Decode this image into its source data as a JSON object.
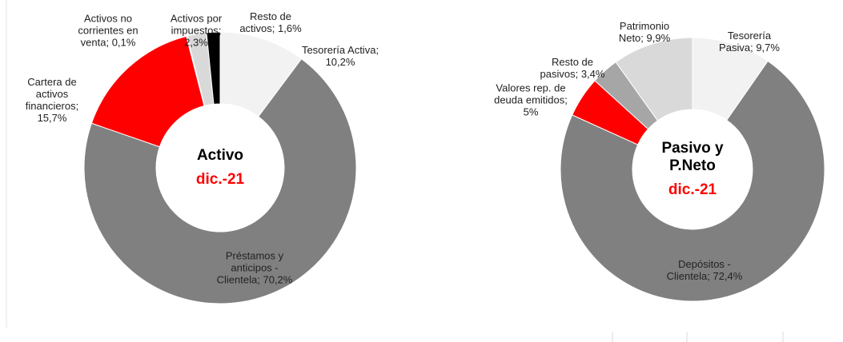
{
  "chart_data": [
    {
      "type": "donut",
      "center_title": "Activo",
      "center_subtitle": "dic.-21",
      "label_separator": "; ",
      "categories": [
        "Tesorería Activa",
        "Préstamos y anticipos - Clientela",
        "Cartera de activos financieros",
        "Activos no corrientes en venta",
        "Activos por impuestos",
        "Resto de activos"
      ],
      "values": [
        10.2,
        70.2,
        15.7,
        0.1,
        2.3,
        1.6
      ],
      "value_labels": [
        "10,2%",
        "70,2%",
        "15,7%",
        "0,1%",
        "2,3%",
        "1,6%"
      ],
      "colors": [
        "#f2f2f2",
        "#808080",
        "#ff0000",
        "#bfbfbf",
        "#d9d9d9",
        "#000000"
      ]
    },
    {
      "type": "donut",
      "center_title": "Pasivo y P.Neto",
      "center_subtitle": "dic.-21",
      "label_separator": "; ",
      "categories": [
        "Tesorería Pasiva",
        "Depósitos - Clientela",
        "Valores rep. de deuda emitidos",
        "Resto de pasivos",
        "Patrimonio Neto"
      ],
      "values": [
        9.7,
        72.4,
        5,
        3.4,
        9.9
      ],
      "value_labels": [
        "9,7%",
        "72,4%",
        "5%",
        "3,4%",
        "9,9%"
      ],
      "colors": [
        "#f2f2f2",
        "#808080",
        "#ff0000",
        "#a6a6a6",
        "#d9d9d9"
      ]
    }
  ]
}
